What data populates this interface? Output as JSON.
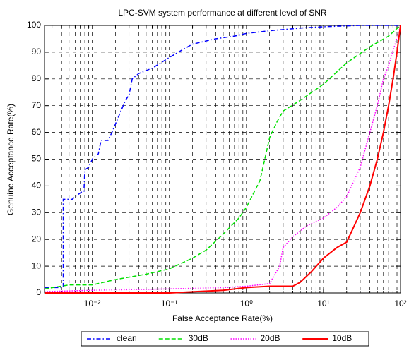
{
  "chart_data": {
    "type": "line",
    "title": "LPC-SVM system performance at different level of SNR",
    "x_label": "False Acceptance Rate(%)",
    "y_label": "Genuine Acceptance Rate(%)",
    "xscale": "log",
    "xlim": [
      0.0024,
      100
    ],
    "ylim": [
      0,
      100
    ],
    "xticks": [
      {
        "value": 0.01,
        "label": "10⁻²"
      },
      {
        "value": 0.1,
        "label": "10⁻¹"
      },
      {
        "value": 1,
        "label": "10⁰"
      },
      {
        "value": 10,
        "label": "10¹"
      },
      {
        "value": 100,
        "label": "10²"
      }
    ],
    "yticks": [
      0,
      10,
      20,
      30,
      40,
      50,
      60,
      70,
      80,
      90,
      100
    ],
    "grid": true,
    "minor_grid": true,
    "legend": "bottom",
    "series": [
      {
        "name": "clean",
        "color": "#0000ff",
        "style": "dashdot",
        "x": [
          0.0024,
          0.0042,
          0.0042,
          0.0055,
          0.006,
          0.0075,
          0.0078,
          0.008,
          0.009,
          0.01,
          0.012,
          0.013,
          0.016,
          0.018,
          0.022,
          0.027,
          0.03,
          0.033,
          0.04,
          0.06,
          0.1,
          0.15,
          0.2,
          0.4,
          0.7,
          1,
          2,
          5,
          10,
          30,
          100
        ],
        "values": [
          2,
          2,
          35,
          35,
          36,
          38,
          38,
          46,
          47,
          50,
          52,
          57,
          57,
          60,
          66,
          72,
          74,
          80,
          82,
          84,
          88,
          91,
          93,
          95,
          96,
          97,
          98,
          99,
          99.5,
          100,
          100
        ]
      },
      {
        "name": "30dB",
        "color": "#00e000",
        "style": "dashed",
        "x": [
          0.0024,
          0.005,
          0.01,
          0.02,
          0.05,
          0.1,
          0.2,
          0.3,
          0.5,
          0.8,
          1,
          1.5,
          2,
          2.5,
          3,
          5,
          10,
          20,
          40,
          70,
          100
        ],
        "values": [
          1.5,
          3,
          3,
          5,
          7,
          9,
          13,
          16,
          22,
          28,
          32,
          42,
          58,
          64,
          68,
          72,
          78,
          86,
          92,
          96,
          100
        ]
      },
      {
        "name": "20dB",
        "color": "#ff00ff",
        "style": "dotted",
        "x": [
          0.0024,
          0.01,
          0.1,
          0.5,
          1,
          2,
          2.7,
          3,
          4,
          6,
          10,
          15,
          20,
          30,
          40,
          50,
          60,
          70,
          85,
          100
        ],
        "values": [
          0.5,
          1,
          1.5,
          2,
          2.5,
          3.5,
          10,
          17,
          21,
          25,
          28,
          32,
          36,
          47,
          60,
          70,
          80,
          85,
          93,
          100
        ]
      },
      {
        "name": "10dB",
        "color": "#ff0000",
        "style": "solid",
        "x": [
          0.0024,
          0.1,
          0.5,
          1,
          2,
          4,
          5,
          7,
          10,
          15,
          20,
          25,
          30,
          40,
          50,
          60,
          70,
          80,
          90,
          100
        ],
        "values": [
          0,
          0,
          1,
          2,
          2.5,
          2.5,
          4,
          8,
          13,
          17,
          19,
          25,
          30,
          40,
          50,
          60,
          70,
          80,
          90,
          100
        ]
      }
    ]
  }
}
